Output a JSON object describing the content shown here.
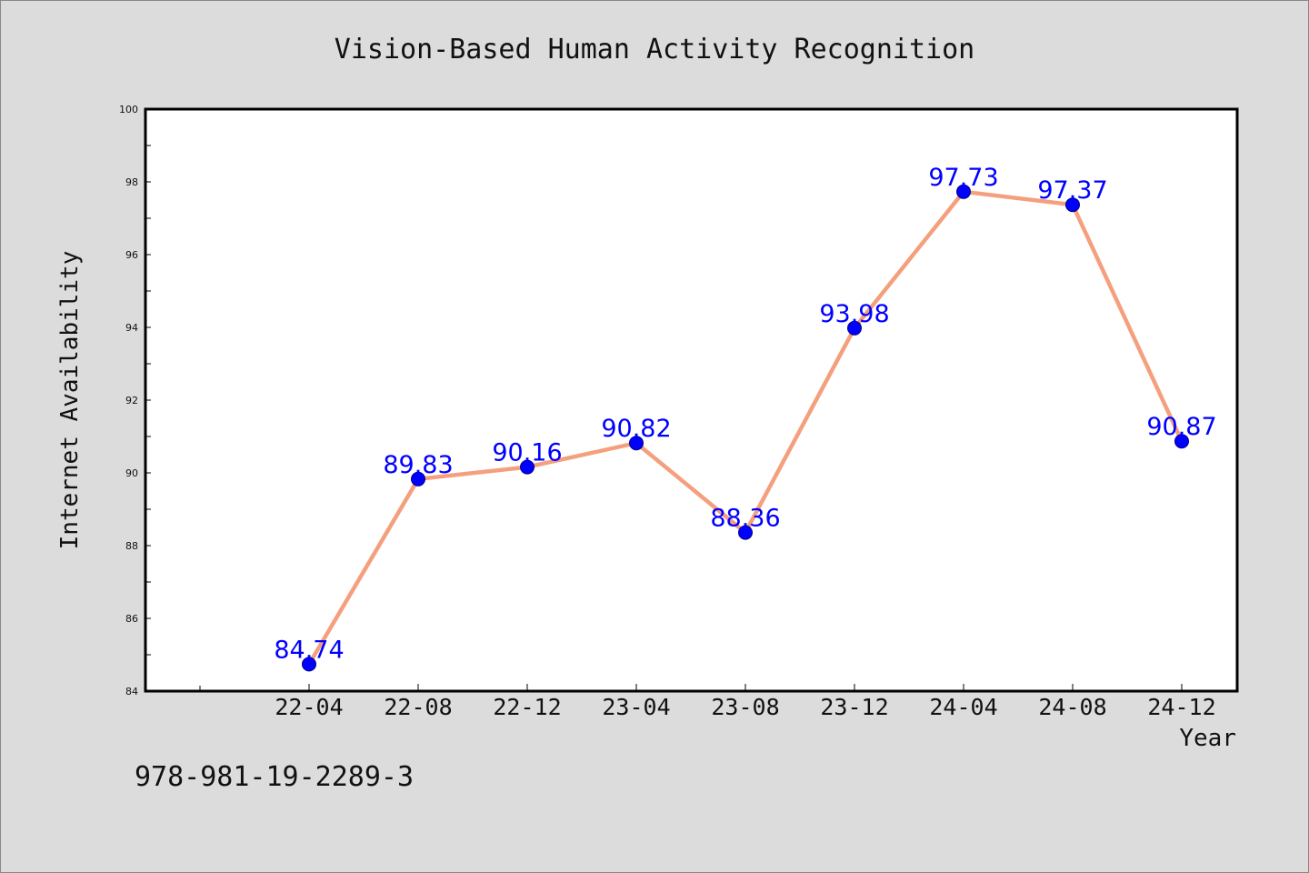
{
  "chart_data": {
    "type": "line",
    "title": "Vision-Based Human Activity Recognition",
    "xlabel": "Year",
    "ylabel": "Internet Availability",
    "categories": [
      "22-04",
      "22-08",
      "22-12",
      "23-04",
      "23-08",
      "23-12",
      "24-04",
      "24-08",
      "24-12"
    ],
    "series": [
      {
        "values": [
          84.74,
          89.83,
          90.16,
          90.82,
          88.36,
          93.98,
          97.73,
          97.37,
          90.87
        ],
        "labels": [
          "84.74",
          "89.83",
          "90.16",
          "90.82",
          "88.36",
          "93.98",
          "97.73",
          "97.37",
          "90.87"
        ]
      }
    ],
    "ylim": [
      84,
      100
    ],
    "yticks": [
      "84",
      "86",
      "88",
      "90",
      "92",
      "94",
      "96",
      "98",
      "100"
    ],
    "grid": false,
    "colors": {
      "line": "#f4a07e",
      "marker": "#0000ff",
      "label": "#0000ff"
    }
  },
  "footer_text": "978-981-19-2289-3"
}
